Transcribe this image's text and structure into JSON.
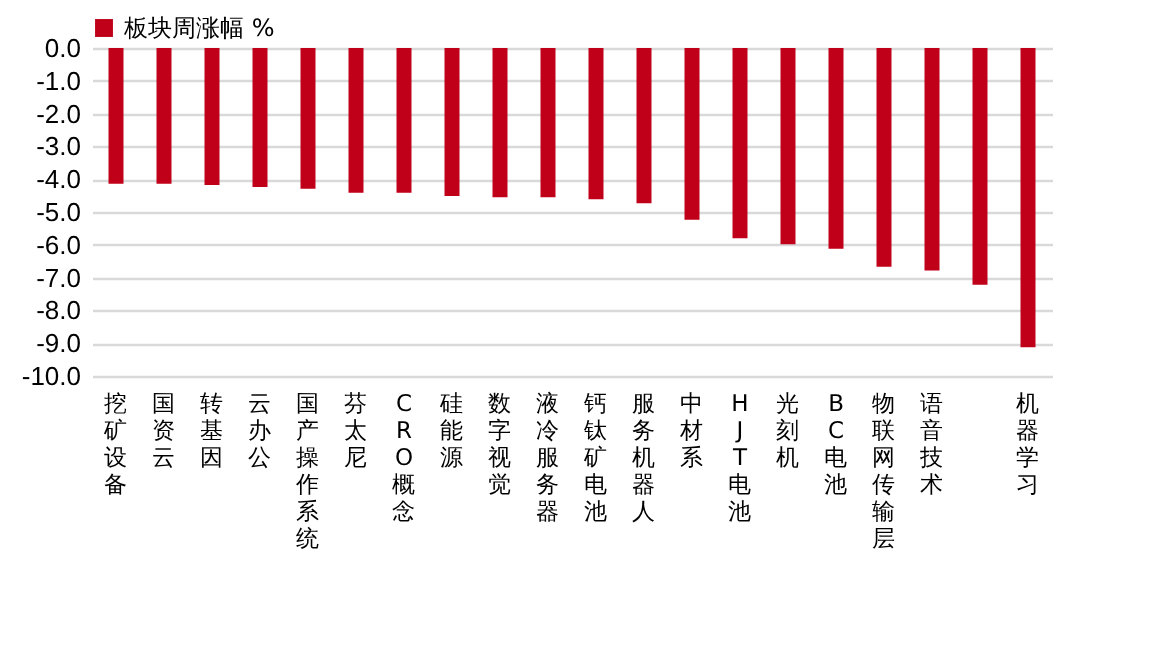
{
  "chart_data": {
    "type": "bar",
    "categories": [
      "挖矿设备",
      "国资云",
      "转基因",
      "云办公",
      "国产操作系统",
      "芬太尼",
      "CRO概念",
      "硅能源",
      "数字视觉",
      "液冷服务器",
      "钙钛矿电池",
      "服务机器人",
      "中材系",
      "HJT电池",
      "光刻机",
      "BC电池",
      "物联网传输层",
      "语音技术",
      null,
      "机器学习"
    ],
    "series": [
      {
        "name": "板块周涨幅 %",
        "color": "#c00018",
        "values": [
          -4.14,
          -4.14,
          -4.18,
          -4.24,
          -4.29,
          -4.41,
          -4.41,
          -4.51,
          -4.55,
          -4.55,
          -4.61,
          -4.73,
          -5.24,
          -5.8,
          -5.98,
          -6.12,
          -6.67,
          -6.78,
          -7.22,
          -9.12
        ]
      }
    ],
    "ylim": [
      -10,
      0
    ],
    "yticks": [
      {
        "value": 0,
        "label": "0.0"
      },
      {
        "value": -1,
        "label": "-1.0"
      },
      {
        "value": -2,
        "label": "-2.0"
      },
      {
        "value": -3,
        "label": "-3.0"
      },
      {
        "value": -4,
        "label": "-4.0"
      },
      {
        "value": -5,
        "label": "-5.0"
      },
      {
        "value": -6,
        "label": "-6.0"
      },
      {
        "value": -7,
        "label": "-7.0"
      },
      {
        "value": -8,
        "label": "-8.0"
      },
      {
        "value": -9,
        "label": "-9.0"
      },
      {
        "value": -10,
        "label": "-10.0"
      }
    ],
    "grid": "y",
    "legend": "top"
  }
}
